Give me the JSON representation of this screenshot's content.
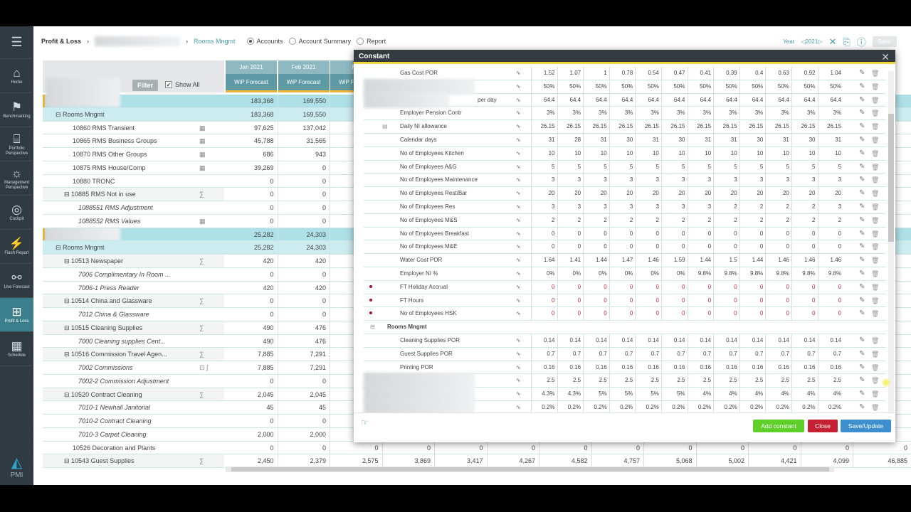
{
  "sidebar": {
    "items": [
      {
        "label": "Home",
        "icon": "home-icon"
      },
      {
        "label": "Benchmarking",
        "icon": "benchmarking-icon"
      },
      {
        "label": "Portfolio Perspective",
        "icon": "portfolio-icon"
      },
      {
        "label": "Management Perspective",
        "icon": "bulb-icon"
      },
      {
        "label": "Cockpit",
        "icon": "steering-wheel-icon"
      },
      {
        "label": "Flash Report",
        "icon": "flash-icon"
      },
      {
        "label": "Live Forecast",
        "icon": "satellite-icon"
      },
      {
        "label": "Profit & Loss",
        "icon": "profit-loss-icon",
        "active": true
      },
      {
        "label": "Schedule",
        "icon": "schedule-icon"
      }
    ],
    "logo": "PMI"
  },
  "header": {
    "breadcrumb_root": "Profit & Loss",
    "breadcrumb_current": "Rooms Mngmt",
    "views": [
      {
        "label": "Accounts",
        "selected": true
      },
      {
        "label": "Account Summary",
        "selected": false
      },
      {
        "label": "Report",
        "selected": false
      }
    ],
    "year_label": "Year",
    "year": "2021",
    "save": "Save"
  },
  "left": {
    "filter": "Filter",
    "show_all": "Show All",
    "show_all_checked": true
  },
  "months": [
    "Jan 2021",
    "Feb 2021",
    "Ma"
  ],
  "sub_header": "WiP Forecast",
  "rows": [
    {
      "label": "",
      "type": "g1",
      "blur": true,
      "v": [
        "183,368",
        "169,550"
      ]
    },
    {
      "label": "⊟ Rooms Mngmt",
      "type": "g2",
      "indent": 18,
      "v": [
        "183,368",
        "169,550"
      ]
    },
    {
      "label": "10860 RMS Transient",
      "indent": 42,
      "icon": "▦",
      "v": [
        "97,625",
        "137,042"
      ]
    },
    {
      "label": "10865 RMS Business Groups",
      "indent": 42,
      "icon": "▦",
      "v": [
        "45,788",
        "31,565"
      ]
    },
    {
      "label": "10870 RMS Other Groups",
      "indent": 42,
      "icon": "▦",
      "v": [
        "686",
        "943"
      ]
    },
    {
      "label": "10875 RMS House/Comp",
      "indent": 42,
      "icon": "▦",
      "v": [
        "39,269",
        "0"
      ]
    },
    {
      "label": "10880 TRONC",
      "indent": 42,
      "v": [
        "0",
        "0"
      ]
    },
    {
      "label": "⊟ 10885 RMS Not in use",
      "indent": 30,
      "type": "sum",
      "icon": "∑",
      "v": [
        "0",
        "0"
      ]
    },
    {
      "label": "1088551 RMS Adjustment",
      "indent": 50,
      "italic": true,
      "v": [
        "0",
        "0"
      ]
    },
    {
      "label": "1088552 RMS Values",
      "indent": 50,
      "italic": true,
      "icon": "▦",
      "v": [
        "0",
        "0"
      ]
    },
    {
      "label": "",
      "type": "g1",
      "blur": true,
      "v": [
        "25,282",
        "24,303"
      ]
    },
    {
      "label": "⊟ Rooms Mngmt",
      "type": "g2",
      "indent": 18,
      "v": [
        "25,282",
        "24,303"
      ]
    },
    {
      "label": "⊟ 10513 Newspaper",
      "indent": 30,
      "type": "sum",
      "icon": "∑",
      "v": [
        "420",
        "420"
      ]
    },
    {
      "label": "7006 Complimentary In Room ...",
      "indent": 50,
      "italic": true,
      "v": [
        "0",
        "0"
      ]
    },
    {
      "label": "7006-1 Press Reader",
      "indent": 50,
      "italic": true,
      "v": [
        "420",
        "420"
      ]
    },
    {
      "label": "⊟ 10514 China and Glassware",
      "indent": 30,
      "type": "sum",
      "icon": "∑",
      "v": [
        "0",
        "0"
      ]
    },
    {
      "label": "7012 China & Glassware",
      "indent": 50,
      "italic": true,
      "v": [
        "0",
        "0"
      ]
    },
    {
      "label": "⊟ 10515 Cleaning Supplies",
      "indent": 30,
      "type": "sum",
      "icon": "∑",
      "v": [
        "490",
        "476"
      ]
    },
    {
      "label": "7000 Cleaning supplies Cent...",
      "indent": 50,
      "italic": true,
      "v": [
        "490",
        "476"
      ]
    },
    {
      "label": "⊟ 10516 Commission Travel Agen...",
      "indent": 30,
      "type": "sum",
      "icon": "∑",
      "v": [
        "7,885",
        "7,291"
      ]
    },
    {
      "label": "7002 Commissions",
      "indent": 50,
      "italic": true,
      "icon": "⊡ ∫",
      "v": [
        "7,885",
        "7,291"
      ]
    },
    {
      "label": "7002-2 Commission Adjustment",
      "indent": 50,
      "italic": true,
      "v": [
        "0",
        "0"
      ]
    },
    {
      "label": "⊟ 10520 Contract Cleaning",
      "indent": 30,
      "type": "sum",
      "icon": "∑",
      "v": [
        "2,045",
        "2,045"
      ]
    },
    {
      "label": "7010-1 Newhall Janitorial",
      "indent": 50,
      "italic": true,
      "v": [
        "45",
        "45"
      ]
    },
    {
      "label": "7010-2 Contract Cleaning",
      "indent": 50,
      "italic": true,
      "v": [
        "0",
        "0"
      ]
    },
    {
      "label": "7010-3 Carpet Cleaning",
      "indent": 50,
      "italic": true,
      "v": [
        "2,000",
        "2,000"
      ]
    },
    {
      "label": "10526 Decoration and Plants",
      "indent": 42,
      "v": [
        "0",
        "0",
        "0",
        "0",
        "0",
        "0",
        "0",
        "0",
        "0",
        "0",
        "0",
        "0",
        "0"
      ]
    },
    {
      "label": "⊟ 10543 Guest Supplies",
      "indent": 30,
      "type": "sum",
      "icon": "∑",
      "v": [
        "2,450",
        "2,379",
        "2,575",
        "3,869",
        "3,417",
        "4,267",
        "4,582",
        "4,757",
        "5,068",
        "5,002",
        "4,421",
        "4,099",
        "46,885"
      ]
    }
  ],
  "modal": {
    "title": "Constant",
    "add": "Add constant",
    "close": "Close",
    "save": "Save/Update",
    "colors": {
      "add": "#5fcf2a",
      "close": "#c42232",
      "save": "#3d8fce"
    },
    "rows": [
      {
        "name": "Gas Cost POR",
        "v": [
          "1.52",
          "1.07",
          "1",
          "0.78",
          "0.54",
          "0.47",
          "0.41",
          "0.39",
          "0.4",
          "0.63",
          "0.92",
          "1.04"
        ]
      },
      {
        "name": "",
        "blur": true,
        "v": [
          "50%",
          "50%",
          "50%",
          "50%",
          "50%",
          "50%",
          "50%",
          "50%",
          "50%",
          "50%",
          "50%",
          "50%"
        ]
      },
      {
        "name": "per day",
        "blur": true,
        "partial": true,
        "v": [
          "64.4",
          "64.4",
          "64.4",
          "64.4",
          "64.4",
          "64.4",
          "64.4",
          "64.4",
          "64.4",
          "64.4",
          "64.4",
          "64.4"
        ]
      },
      {
        "name": "Employer Pension Contr",
        "v": [
          "3%",
          "3%",
          "3%",
          "3%",
          "3%",
          "3%",
          "3%",
          "3%",
          "3%",
          "3%",
          "3%",
          "3%"
        ]
      },
      {
        "name": "Daily NI allowance",
        "cal": true,
        "v": [
          "26.15",
          "26.15",
          "26.15",
          "26.15",
          "26.15",
          "26.15",
          "26.15",
          "26.15",
          "26.15",
          "26.15",
          "26.15",
          "26.15"
        ]
      },
      {
        "name": "Calendar days",
        "v": [
          "31",
          "28",
          "31",
          "30",
          "31",
          "30",
          "31",
          "31",
          "30",
          "31",
          "30",
          "31"
        ]
      },
      {
        "name": "No of Employees Kitchen",
        "v": [
          "10",
          "10",
          "10",
          "10",
          "10",
          "10",
          "10",
          "10",
          "10",
          "10",
          "10",
          "10"
        ]
      },
      {
        "name": "No of Employees A&G",
        "v": [
          "5",
          "5",
          "5",
          "5",
          "5",
          "5",
          "5",
          "5",
          "5",
          "5",
          "5",
          "5"
        ]
      },
      {
        "name": "No of Employees Maintenance",
        "v": [
          "3",
          "3",
          "3",
          "3",
          "3",
          "3",
          "3",
          "3",
          "3",
          "3",
          "3",
          "3"
        ]
      },
      {
        "name": "No of Employees Rest/Bar",
        "v": [
          "20",
          "20",
          "20",
          "20",
          "20",
          "20",
          "20",
          "20",
          "20",
          "20",
          "20",
          "20"
        ]
      },
      {
        "name": "No of Employees Res",
        "v": [
          "3",
          "3",
          "3",
          "3",
          "3",
          "3",
          "3",
          "2",
          "2",
          "2",
          "2",
          "3"
        ]
      },
      {
        "name": "No of Employees M&S",
        "v": [
          "2",
          "2",
          "2",
          "2",
          "2",
          "2",
          "2",
          "2",
          "2",
          "2",
          "2",
          "2"
        ]
      },
      {
        "name": "No of Employees Breakfast",
        "v": [
          "0",
          "0",
          "0",
          "0",
          "0",
          "0",
          "0",
          "0",
          "0",
          "0",
          "0",
          "0"
        ]
      },
      {
        "name": "No of Employees M&E",
        "v": [
          "0",
          "0",
          "0",
          "0",
          "0",
          "0",
          "0",
          "0",
          "0",
          "0",
          "0",
          "0"
        ]
      },
      {
        "name": "Water Cost POR",
        "v": [
          "1.64",
          "1.41",
          "1.44",
          "1.47",
          "1.46",
          "1.59",
          "1.44",
          "1.5",
          "1.44",
          "1.46",
          "1.46",
          "1.46"
        ]
      },
      {
        "name": "Employer NI %",
        "v": [
          "0%",
          "0%",
          "0%",
          "0%",
          "0%",
          "0%",
          "9.8%",
          "9.8%",
          "9.8%",
          "9.8%",
          "9.8%",
          "9.8%"
        ]
      },
      {
        "name": "FT Holiday Accrual",
        "alert": true,
        "v": [
          "0",
          "0",
          "0",
          "0",
          "0",
          "0",
          "0",
          "0",
          "0",
          "0",
          "0",
          "0"
        ]
      },
      {
        "name": "FT Hours",
        "alert": true,
        "v": [
          "0",
          "0",
          "0",
          "0",
          "0",
          "0",
          "0",
          "0",
          "0",
          "0",
          "0",
          "0"
        ]
      },
      {
        "name": "No of Employees HSK",
        "alert": true,
        "v": [
          "0",
          "0",
          "0",
          "0",
          "0",
          "0",
          "0",
          "0",
          "0",
          "0",
          "0",
          "0"
        ]
      },
      {
        "name": "Rooms Mngmt",
        "group": true
      },
      {
        "name": "Cleaning Supplies POR",
        "v": [
          "0.14",
          "0.14",
          "0.14",
          "0.14",
          "0.14",
          "0.14",
          "0.14",
          "0.14",
          "0.14",
          "0.14",
          "0.14",
          "0.14"
        ]
      },
      {
        "name": "Guest Supplies POR",
        "v": [
          "0.7",
          "0.7",
          "0.7",
          "0.7",
          "0.7",
          "0.7",
          "0.7",
          "0.7",
          "0.7",
          "0.7",
          "0.7",
          "0.7"
        ]
      },
      {
        "name": "Printing POR",
        "v": [
          "0.16",
          "0.16",
          "0.16",
          "0.16",
          "0.16",
          "0.16",
          "0.16",
          "0.16",
          "0.16",
          "0.16",
          "0.16",
          "0.16"
        ]
      },
      {
        "name": "",
        "blur": true,
        "v": [
          "2.5",
          "2.5",
          "2.5",
          "2.5",
          "2.5",
          "2.5",
          "2.5",
          "2.5",
          "2.5",
          "2.5",
          "2.5",
          "2.5"
        ]
      },
      {
        "name": "",
        "blur": true,
        "v": [
          "4.3%",
          "4.3%",
          "5%",
          "5%",
          "5%",
          "5%",
          "4%",
          "4%",
          "4%",
          "4%",
          "4%",
          "4%"
        ]
      },
      {
        "name": "",
        "blur": true,
        "v": [
          "0.2%",
          "0.2%",
          "0.2%",
          "0.2%",
          "0.2%",
          "0.2%",
          "0.2%",
          "0.2%",
          "0.2%",
          "0.2%",
          "0.2%",
          "0.2%"
        ]
      }
    ]
  }
}
